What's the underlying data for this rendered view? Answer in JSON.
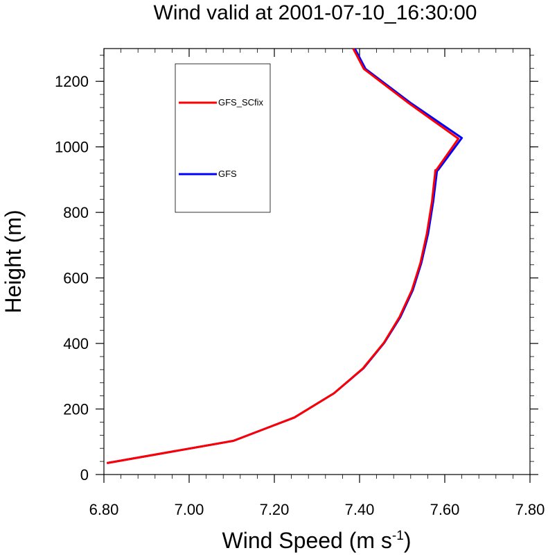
{
  "chart_data": {
    "type": "line",
    "title": "Wind valid at 2001-07-10_16:30:00",
    "xlabel": "Wind Speed (m s",
    "xlabel_sup": "-1",
    "xlabel_end": ")",
    "ylabel": "Height (m)",
    "xlim": [
      6.8,
      7.8
    ],
    "ylim": [
      0,
      1300
    ],
    "xticks": [
      6.8,
      7.0,
      7.2,
      7.4,
      7.6,
      7.8
    ],
    "xtick_labels": [
      "6.80",
      "7.00",
      "7.20",
      "7.40",
      "7.60",
      "7.80"
    ],
    "yticks": [
      0,
      200,
      400,
      600,
      800,
      1000,
      1200
    ],
    "ytick_labels": [
      "0",
      "200",
      "400",
      "600",
      "800",
      "1000",
      "1200"
    ],
    "legend": {
      "placement": "top-left",
      "entries": [
        "GFS_SCfix",
        "GFS"
      ]
    },
    "series": [
      {
        "name": "GFS_SCfix",
        "color": "#ff0000",
        "x": [
          6.807,
          7.104,
          7.247,
          7.34,
          7.408,
          7.457,
          7.494,
          7.523,
          7.543,
          7.558,
          7.57,
          7.578,
          7.58,
          7.632,
          7.516,
          7.41,
          7.385
        ],
        "y": [
          35,
          103,
          174,
          248,
          324,
          402,
          481,
          563,
          646,
          736,
          834,
          929,
          929,
          1025,
          1133,
          1238,
          1300
        ]
      },
      {
        "name": "GFS",
        "color": "#0000ff",
        "x": [
          6.807,
          7.104,
          7.247,
          7.34,
          7.409,
          7.458,
          7.496,
          7.525,
          7.545,
          7.561,
          7.573,
          7.582,
          7.584,
          7.64,
          7.521,
          7.414,
          7.389
        ],
        "y": [
          35,
          103,
          174,
          248,
          324,
          402,
          481,
          563,
          646,
          736,
          834,
          929,
          929,
          1027,
          1133,
          1238,
          1300
        ]
      }
    ]
  }
}
